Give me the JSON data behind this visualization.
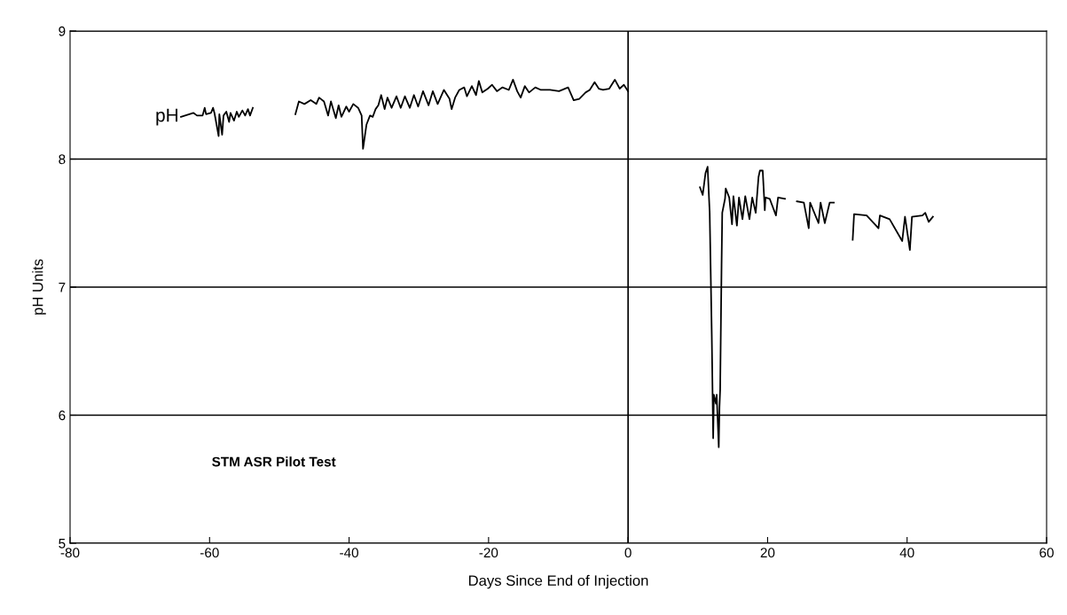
{
  "chart_data": {
    "type": "line",
    "xlabel": "Days Since End of Injection",
    "ylabel": "pH Units",
    "xlim": [
      -80,
      60
    ],
    "xticks": [
      -80,
      -60,
      -40,
      -20,
      0,
      20,
      40,
      60
    ],
    "ylim": [
      5,
      9
    ],
    "yticks": [
      5,
      6,
      7,
      8,
      9
    ],
    "grid": "y",
    "legend": false,
    "marker": "none",
    "line_style": "solid",
    "ref_lines": [
      {
        "axis": "x",
        "value": 0,
        "color": "#000000"
      }
    ],
    "annotations": [
      "STM ASR Pilot Test"
    ],
    "series": [
      {
        "name": "pH",
        "color": "#000000",
        "x": [
          -64.1,
          -62.3,
          -61.8,
          -61.0,
          -60.7,
          -60.5,
          -59.8,
          -59.5,
          -59.3,
          -58.7,
          -58.6,
          -58.2,
          -58.0,
          -57.6,
          -57.2,
          -57.0,
          -56.5,
          -56.1,
          -55.8,
          -55.3,
          -54.9,
          -54.5,
          -54.2,
          -53.8,
          null,
          -47.7,
          -47.2,
          -46.4,
          -45.5,
          -44.7,
          -44.3,
          -43.6,
          -43.0,
          -42.6,
          -41.9,
          -41.5,
          -41.1,
          -40.4,
          -40.0,
          -39.4,
          -38.7,
          -38.2,
          -38.0,
          -37.5,
          -37.0,
          -36.6,
          -36.2,
          -35.8,
          -35.4,
          -34.9,
          -34.5,
          -33.9,
          -33.2,
          -32.6,
          -32.0,
          -31.3,
          -30.7,
          -30.1,
          -29.4,
          -28.6,
          -28.0,
          -27.3,
          -26.4,
          -25.6,
          -25.3,
          -24.8,
          -24.2,
          -23.5,
          -23.1,
          -22.4,
          -21.8,
          -21.4,
          -20.9,
          -20.1,
          -19.5,
          -18.8,
          -18.0,
          -17.1,
          -16.5,
          -15.9,
          -15.4,
          -14.8,
          -14.2,
          -13.3,
          -12.5,
          -11.2,
          -9.9,
          -8.6,
          -7.8,
          -7.0,
          -6.1,
          -5.5,
          -4.8,
          -4.2,
          -3.6,
          -2.7,
          -1.9,
          -1.2,
          -0.6,
          0.0,
          null,
          10.3,
          10.7,
          11.1,
          11.4,
          11.7,
          12.0,
          12.2,
          12.3,
          12.6,
          12.7,
          13.0,
          13.1,
          13.2,
          13.4,
          13.5,
          13.9,
          14.0,
          14.5,
          14.9,
          15.1,
          15.6,
          15.9,
          16.4,
          16.8,
          17.4,
          17.8,
          18.3,
          18.7,
          18.9,
          19.3,
          19.6,
          19.7,
          20.3,
          21.2,
          21.5,
          22.5,
          null,
          24.2,
          25.2,
          25.9,
          26.1,
          27.3,
          27.6,
          28.2,
          28.9,
          29.5,
          null,
          32.2,
          32.4,
          34.2,
          35.9,
          36.1,
          37.5,
          39.3,
          39.7,
          40.4,
          40.7,
          42.2,
          42.6,
          43.1,
          43.7
        ],
        "values": [
          8.33,
          8.36,
          8.34,
          8.34,
          8.4,
          8.35,
          8.36,
          8.4,
          8.36,
          8.18,
          8.35,
          8.19,
          8.34,
          8.37,
          8.29,
          8.36,
          8.3,
          8.37,
          8.33,
          8.38,
          8.34,
          8.39,
          8.34,
          8.4,
          null,
          8.35,
          8.45,
          8.43,
          8.46,
          8.43,
          8.48,
          8.45,
          8.34,
          8.45,
          8.32,
          8.42,
          8.33,
          8.41,
          8.37,
          8.43,
          8.4,
          8.34,
          8.08,
          8.27,
          8.34,
          8.33,
          8.39,
          8.42,
          8.5,
          8.39,
          8.48,
          8.4,
          8.49,
          8.4,
          8.49,
          8.4,
          8.5,
          8.41,
          8.53,
          8.42,
          8.53,
          8.43,
          8.54,
          8.47,
          8.39,
          8.48,
          8.54,
          8.56,
          8.49,
          8.57,
          8.5,
          8.61,
          8.52,
          8.55,
          8.58,
          8.53,
          8.56,
          8.54,
          8.62,
          8.53,
          8.48,
          8.57,
          8.52,
          8.56,
          8.54,
          8.54,
          8.53,
          8.56,
          8.46,
          8.47,
          8.52,
          8.54,
          8.6,
          8.55,
          8.54,
          8.55,
          8.62,
          8.55,
          8.58,
          8.53,
          null,
          7.78,
          7.72,
          7.89,
          7.94,
          7.58,
          6.61,
          5.82,
          6.16,
          6.09,
          6.16,
          5.75,
          6.06,
          6.2,
          7.17,
          7.58,
          7.69,
          7.77,
          7.7,
          7.49,
          7.71,
          7.48,
          7.7,
          7.53,
          7.71,
          7.53,
          7.7,
          7.58,
          7.86,
          7.91,
          7.91,
          7.6,
          7.7,
          7.69,
          7.56,
          7.7,
          7.69,
          null,
          7.67,
          7.66,
          7.46,
          7.66,
          7.5,
          7.66,
          7.5,
          7.66,
          7.66,
          null,
          7.37,
          7.57,
          7.56,
          7.46,
          7.56,
          7.53,
          7.36,
          7.55,
          7.29,
          7.55,
          7.56,
          7.58,
          7.51,
          7.55
        ]
      }
    ]
  }
}
